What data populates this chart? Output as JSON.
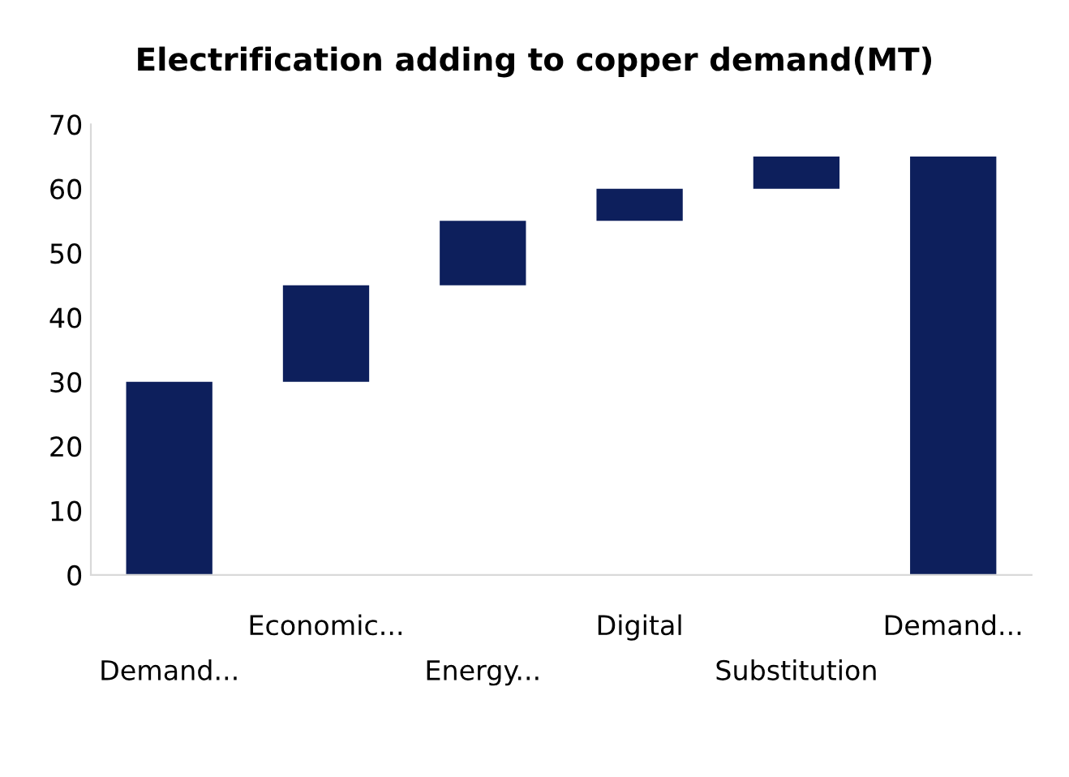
{
  "chart_data": {
    "type": "bar",
    "title": "Electrification adding to copper demand(MT)",
    "categories": [
      "Demand...",
      "Economic...",
      "Energy...",
      "Digital",
      "Substitution",
      "Demand..."
    ],
    "values": [
      30,
      15,
      10,
      5,
      5,
      65
    ],
    "base": [
      0,
      30,
      45,
      55,
      60,
      0
    ],
    "color": "#0d1f5c",
    "ylim": [
      0,
      70
    ],
    "yticks": [
      0,
      10,
      20,
      30,
      40,
      50,
      60,
      70
    ],
    "grid": false
  }
}
